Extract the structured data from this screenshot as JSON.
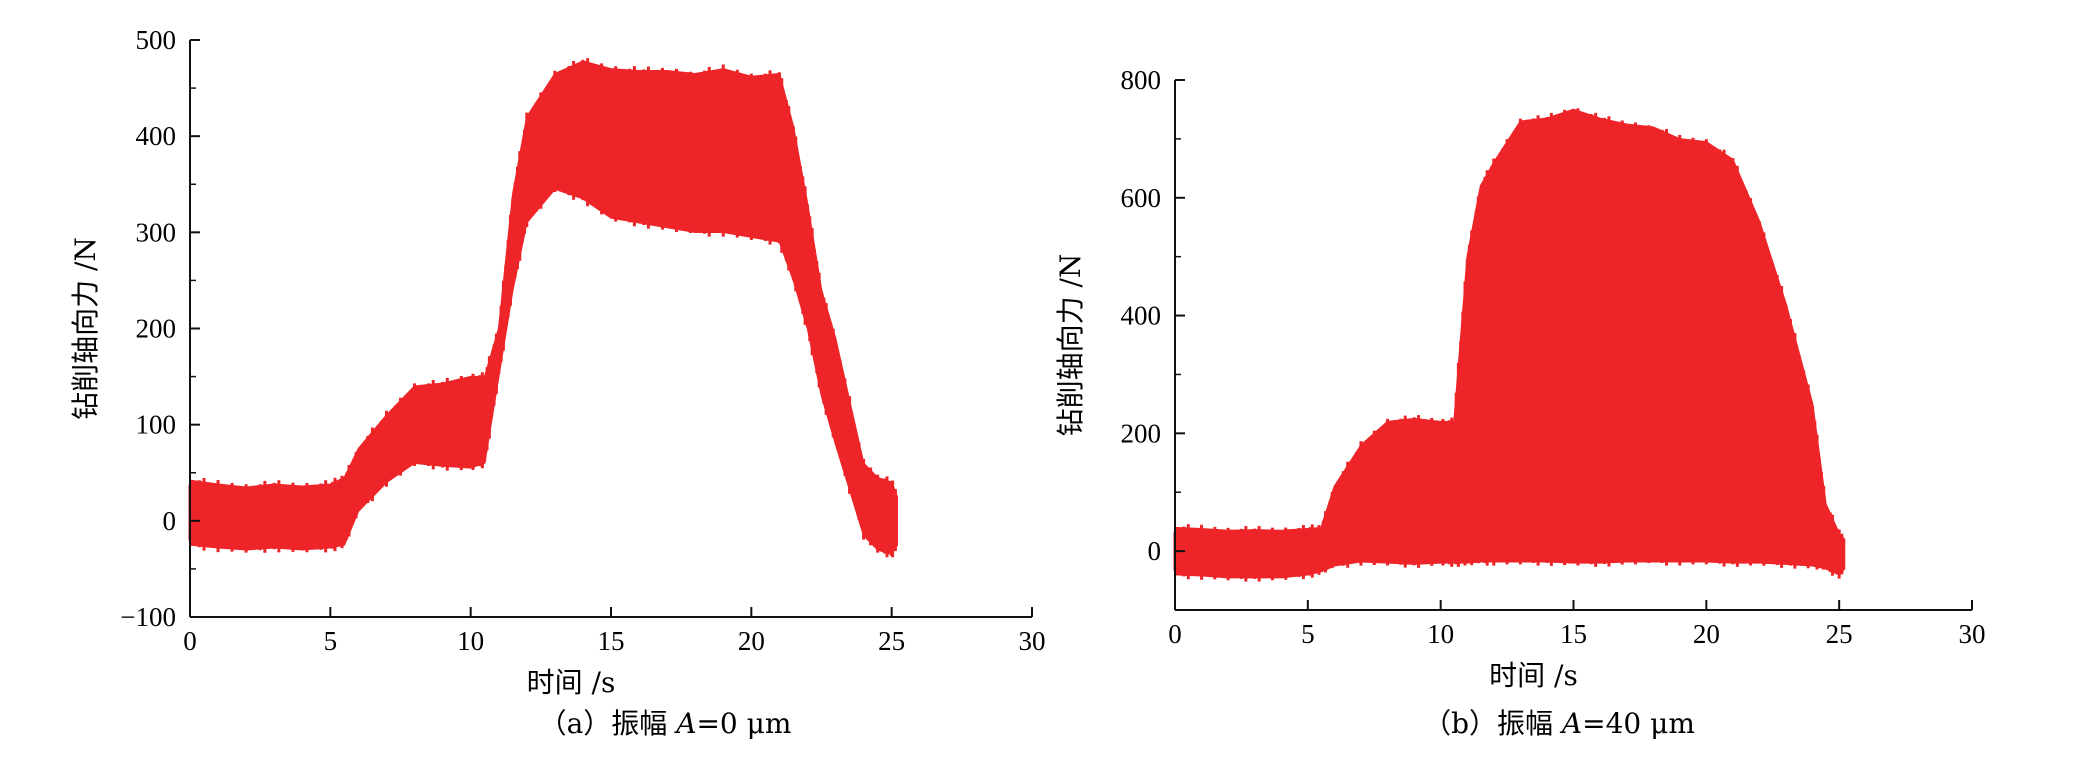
{
  "colors": {
    "series": "#ee2528",
    "axis": "#111111"
  },
  "chart_data": [
    {
      "type": "area",
      "caption": {
        "prefix": "（a）振幅 ",
        "var": "A",
        "suffix": "=0 μm"
      },
      "xlabel": "时间 /s",
      "ylabel": "钻削轴向力 /N",
      "xlim": [
        0,
        30
      ],
      "ylim": [
        -100,
        500
      ],
      "xticks": [
        "0",
        "5",
        "10",
        "15",
        "20",
        "25",
        "30"
      ],
      "yticks": [
        "−100",
        "0",
        "100",
        "200",
        "300",
        "400",
        "500"
      ],
      "grid": false,
      "legend": "none",
      "series": [
        {
          "x": [
            0,
            1,
            2,
            3,
            4,
            5,
            5.5,
            6,
            7,
            8,
            9,
            10,
            10.5,
            11,
            11.5,
            12,
            13,
            14,
            15,
            16,
            17,
            18,
            19,
            20,
            21,
            21.5,
            22,
            22.5,
            23,
            24,
            24.5,
            25,
            25.2
          ],
          "upper": [
            42,
            38,
            35,
            38,
            36,
            38,
            45,
            75,
            110,
            140,
            143,
            150,
            150,
            200,
            340,
            420,
            465,
            478,
            470,
            468,
            468,
            465,
            470,
            462,
            465,
            410,
            330,
            240,
            190,
            60,
            45,
            40,
            25
          ],
          "lower": [
            -25,
            -28,
            -30,
            -28,
            -30,
            -28,
            -25,
            10,
            40,
            60,
            57,
            55,
            60,
            150,
            240,
            310,
            345,
            335,
            315,
            310,
            305,
            300,
            300,
            295,
            290,
            250,
            200,
            130,
            80,
            -15,
            -30,
            -35,
            -25
          ]
        }
      ]
    },
    {
      "type": "area",
      "caption": {
        "prefix": "（b）振幅 ",
        "var": "A",
        "suffix": "=40 μm"
      },
      "xlabel": "时间 /s",
      "ylabel": "钻削轴向力 /N",
      "xlim": [
        0,
        30
      ],
      "ylim": [
        -100,
        800
      ],
      "xticks": [
        "0",
        "5",
        "10",
        "15",
        "20",
        "25",
        "30"
      ],
      "yticks": [
        "0",
        "200",
        "400",
        "600",
        "800"
      ],
      "grid": false,
      "legend": "none",
      "series": [
        {
          "x": [
            0,
            1,
            2,
            3,
            4,
            5,
            5.5,
            6,
            7,
            8,
            9,
            10,
            10.5,
            11,
            11.5,
            12,
            13,
            14,
            15,
            16,
            17,
            18,
            19,
            20,
            21,
            22,
            23,
            24,
            24.5,
            25,
            25.2
          ],
          "upper": [
            40,
            38,
            35,
            36,
            35,
            38,
            40,
            110,
            180,
            220,
            225,
            220,
            220,
            500,
            620,
            660,
            730,
            735,
            750,
            735,
            725,
            720,
            700,
            695,
            665,
            560,
            420,
            250,
            80,
            30,
            20
          ],
          "lower": [
            -40,
            -42,
            -45,
            -45,
            -45,
            -40,
            -35,
            -25,
            -18,
            -20,
            -22,
            -20,
            -20,
            -20,
            -18,
            -18,
            -18,
            -18,
            -20,
            -20,
            -18,
            -18,
            -18,
            -18,
            -20,
            -20,
            -22,
            -25,
            -30,
            -40,
            -30
          ]
        }
      ]
    }
  ]
}
